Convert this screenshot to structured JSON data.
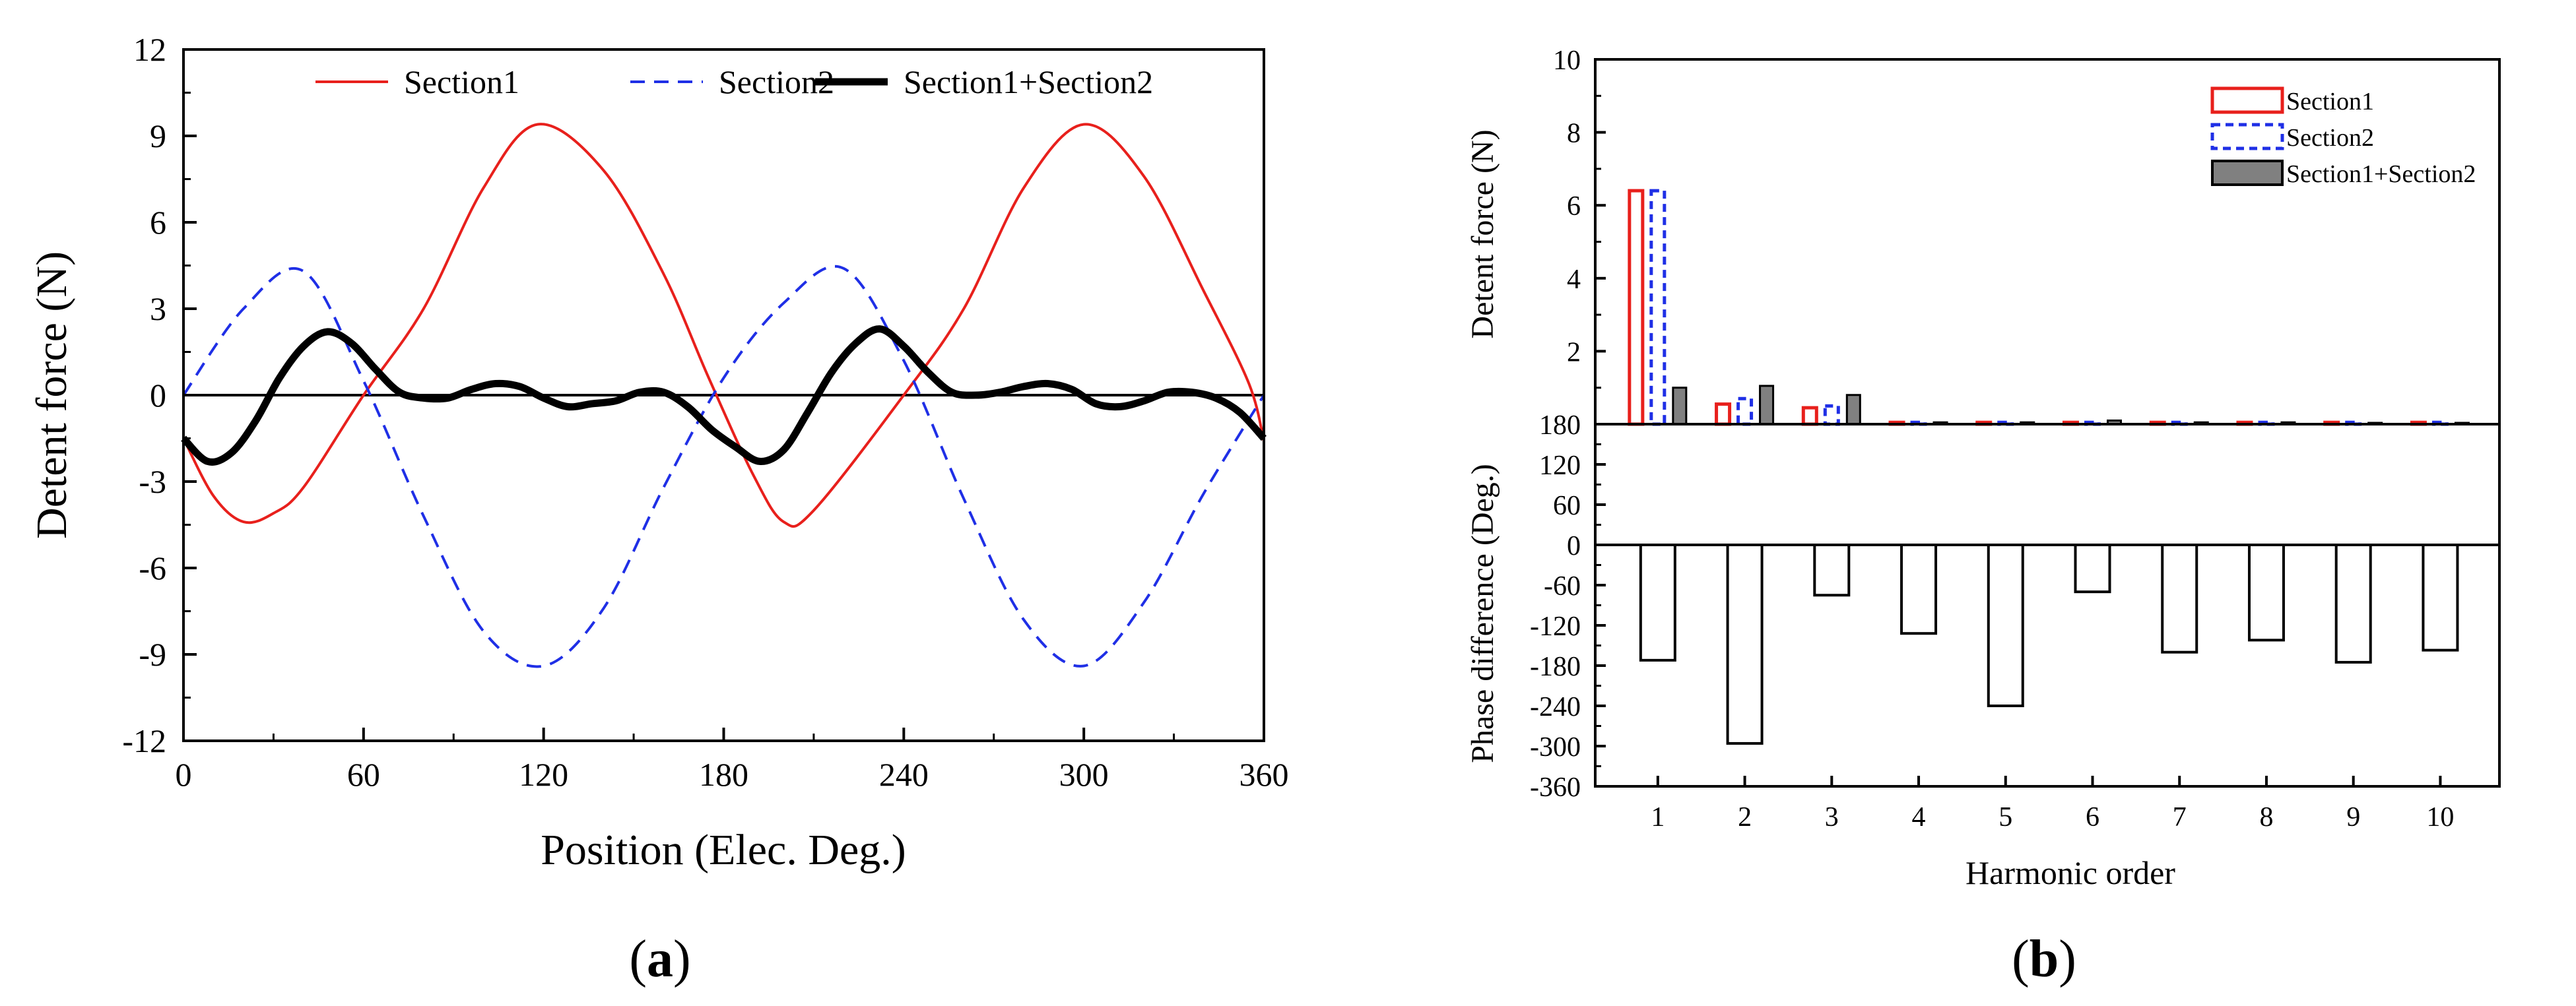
{
  "chart_data": [
    {
      "panel": "a",
      "panel_label": "a",
      "type": "line",
      "xlabel": "Position (Elec. Deg.)",
      "ylabel": "Detent force (N)",
      "xlim": [
        0,
        360
      ],
      "ylim": [
        -12,
        12
      ],
      "xticks": [
        0,
        60,
        120,
        180,
        240,
        300,
        360
      ],
      "yticks": [
        12,
        9,
        6,
        3,
        0,
        -3,
        -6,
        -9,
        -12
      ],
      "legend_position": "top",
      "series": [
        {
          "name": "Section1",
          "color": "#e8201c",
          "style": "solid",
          "x": [
            0,
            10,
            20,
            30,
            40,
            60,
            80,
            100,
            118,
            140,
            160,
            175,
            190,
            200,
            210,
            240,
            260,
            280,
            300,
            320,
            340,
            355,
            360
          ],
          "y": [
            -1.5,
            -3.5,
            -4.4,
            -4.1,
            -3.2,
            0.0,
            3.0,
            7.2,
            9.4,
            7.8,
            4.2,
            0.6,
            -2.8,
            -4.4,
            -4.0,
            0.0,
            3.0,
            7.2,
            9.4,
            7.6,
            3.6,
            0.4,
            -1.6
          ]
        },
        {
          "name": "Section2",
          "color": "#1f2fe6",
          "style": "dashed",
          "x": [
            0,
            20,
            40,
            60,
            80,
            100,
            120,
            140,
            160,
            180,
            200,
            220,
            240,
            260,
            280,
            300,
            320,
            340,
            360
          ],
          "y": [
            0.0,
            3.0,
            4.3,
            0.5,
            -4.2,
            -8.2,
            -9.4,
            -7.4,
            -3.2,
            0.6,
            3.2,
            4.4,
            1.2,
            -3.6,
            -7.8,
            -9.4,
            -7.2,
            -3.4,
            0.0
          ]
        },
        {
          "name": "Section1+Section2",
          "color": "#000000",
          "style": "solid-thick",
          "x": [
            0,
            8,
            16,
            24,
            32,
            40,
            48,
            56,
            64,
            72,
            80,
            88,
            96,
            104,
            112,
            120,
            128,
            136,
            144,
            152,
            160,
            168,
            176,
            184,
            192,
            200,
            208,
            216,
            224,
            232,
            240,
            248,
            256,
            264,
            272,
            280,
            288,
            296,
            304,
            312,
            320,
            328,
            336,
            344,
            352,
            360
          ],
          "y": [
            -1.5,
            -2.3,
            -2.0,
            -0.9,
            0.6,
            1.7,
            2.2,
            1.8,
            0.9,
            0.1,
            -0.1,
            -0.1,
            0.2,
            0.4,
            0.3,
            -0.1,
            -0.4,
            -0.3,
            -0.2,
            0.1,
            0.1,
            -0.4,
            -1.2,
            -1.8,
            -2.3,
            -1.9,
            -0.6,
            0.8,
            1.8,
            2.3,
            1.7,
            0.8,
            0.1,
            0.0,
            0.1,
            0.3,
            0.4,
            0.2,
            -0.3,
            -0.4,
            -0.2,
            0.1,
            0.1,
            -0.1,
            -0.6,
            -1.5
          ]
        }
      ]
    },
    {
      "panel": "b",
      "panel_label": "b",
      "type": "bar",
      "xlabel": "Harmonic order",
      "categories": [
        1,
        2,
        3,
        4,
        5,
        6,
        7,
        8,
        9,
        10
      ],
      "top": {
        "ylabel": "Detent force (N)",
        "ylim": [
          0,
          10
        ],
        "yticks": [
          10,
          8,
          6,
          4,
          2
        ],
        "legend_position": "top-right",
        "series": [
          {
            "name": "Section1",
            "color": "#e8201c",
            "style": "outline-solid",
            "values": [
              6.4,
              0.55,
              0.45,
              0.05,
              0.05,
              0.05,
              0.05,
              0.05,
              0.05,
              0.05
            ]
          },
          {
            "name": "Section2",
            "color": "#1f2fe6",
            "style": "outline-dashed",
            "values": [
              6.4,
              0.7,
              0.5,
              0.05,
              0.05,
              0.05,
              0.05,
              0.05,
              0.05,
              0.05
            ]
          },
          {
            "name": "Section1+Section2",
            "color": "#808080",
            "style": "filled",
            "values": [
              1.0,
              1.05,
              0.8,
              0.05,
              0.05,
              0.1,
              0.05,
              0.05,
              0.03,
              0.03
            ]
          }
        ]
      },
      "bottom": {
        "ylabel": "Phase difference (Deg.)",
        "ylim": [
          -360,
          180
        ],
        "yticks": [
          180,
          120,
          60,
          0,
          -60,
          -120,
          -180,
          -240,
          -300,
          -360
        ],
        "series": [
          {
            "name": "Phase difference",
            "color": "#ffffff",
            "values": [
              -172,
              -296,
              -75,
              -132,
              -240,
              -70,
              -160,
              -142,
              -175,
              -157
            ]
          }
        ]
      }
    }
  ]
}
